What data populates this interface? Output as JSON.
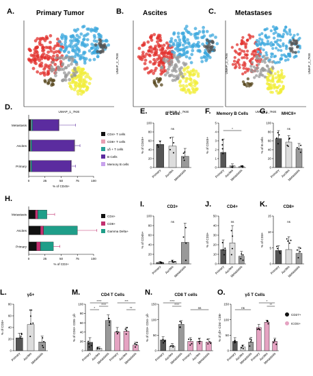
{
  "umap": {
    "panels": [
      {
        "letter": "A.",
        "title": "Primary Tumor"
      },
      {
        "letter": "B.",
        "title": "Ascites"
      },
      {
        "letter": "C.",
        "title": "Metastases"
      }
    ],
    "xlabel": "UMAP_1_7KIE",
    "ylabel": "UMAP_2_7KIE"
  },
  "colors": {
    "black": "#111111",
    "pink": "#e8a0b4",
    "teal": "#2aa198",
    "purple": "#5b2c9f",
    "lavender": "#c8a2ec",
    "darkpurple": "#3d1b6e",
    "magenta": "#c2306f",
    "greenblue": "#1f9e89",
    "lightgray": "#cccccc",
    "darkgray": "#444444",
    "icos": "#e5a3c2",
    "red": "#e2312d",
    "cyan": "#3da8dd",
    "yellow": "#f1ee3c",
    "umapgray": "#9a9a9a"
  },
  "chart_data": [
    {
      "id": "D",
      "type": "bar",
      "letter": "D.",
      "orientation": "horizontal-stacked",
      "categories": [
        "Metastasis",
        "Ascites",
        "Primary"
      ],
      "series": [
        {
          "name": "CD4+ T cells",
          "values": [
            3,
            2,
            2
          ]
        },
        {
          "name": "CD8+ T cells",
          "values": [
            1,
            1,
            1
          ]
        },
        {
          "name": "γδ + T cells",
          "values": [
            2,
            2,
            2
          ]
        },
        {
          "name": "B Cells",
          "values": [
            40,
            65,
            60
          ]
        },
        {
          "name": "Memory B cells",
          "values": [
            1,
            1,
            1
          ]
        }
      ],
      "errors": [
        25,
        8,
        6
      ],
      "xlabel": "% of CD45+",
      "xticks": [
        "0",
        "25",
        "50",
        "75",
        "100"
      ],
      "xlim": [
        0,
        100
      ]
    },
    {
      "id": "E",
      "type": "bar",
      "letter": "E.",
      "title": "B Cells",
      "ylabel": "% of CD45+",
      "categories": [
        "Primary",
        "Ascites",
        "Metastasis"
      ],
      "values": [
        52,
        48,
        25
      ],
      "errors": [
        8,
        20,
        18
      ],
      "yticks": [
        "0",
        "20",
        "40",
        "60",
        "80",
        "100"
      ],
      "ylim": [
        0,
        100
      ],
      "sig": [
        {
          "from": 0,
          "to": 2,
          "text": "ns"
        }
      ]
    },
    {
      "id": "F",
      "type": "bar",
      "letter": "F.",
      "title": "Memory B Cells",
      "ylabel": "% of CD45+",
      "categories": [
        "Primary",
        "Ascites",
        "Metastasis"
      ],
      "values": [
        1.7,
        0.2,
        0.1
      ],
      "errors": [
        1.5,
        0.2,
        0.1
      ],
      "yticks": [
        "0",
        "1",
        "2",
        "3",
        "4",
        "5"
      ],
      "ylim": [
        0,
        5
      ],
      "sig": [
        {
          "from": 0,
          "to": 2,
          "text": "*"
        }
      ]
    },
    {
      "id": "G",
      "type": "bar",
      "letter": "G.",
      "title": "MHCII+",
      "ylabel": "% of B cells",
      "categories": [
        "Primary",
        "Ascites",
        "Metastasis"
      ],
      "values": [
        65,
        57,
        42
      ],
      "errors": [
        18,
        15,
        12
      ],
      "yticks": [
        "0",
        "20",
        "40",
        "60",
        "80",
        "100"
      ],
      "ylim": [
        0,
        100
      ],
      "sig": [
        {
          "from": 0,
          "to": 2,
          "text": "ns"
        }
      ]
    },
    {
      "id": "H",
      "type": "bar",
      "letter": "H.",
      "orientation": "horizontal-stacked",
      "categories": [
        "Metastasis",
        "Ascites",
        "Primary"
      ],
      "series": [
        {
          "name": "CD4+",
          "values": [
            10,
            18,
            12
          ]
        },
        {
          "name": "CD8+",
          "values": [
            4,
            5,
            6
          ]
        },
        {
          "name": "Gamma Delta+",
          "values": [
            14,
            52,
            20
          ]
        }
      ],
      "errors": [
        12,
        30,
        10
      ],
      "xlabel": "% of CD3+",
      "xticks": [
        "0",
        "25",
        "50",
        "75",
        "100"
      ],
      "xlim": [
        0,
        100
      ]
    },
    {
      "id": "I",
      "type": "bar",
      "letter": "I.",
      "title": "CD3+",
      "ylabel": "% of CD45+",
      "categories": [
        "Primary",
        "Ascites",
        "Metastasis"
      ],
      "values": [
        3,
        5,
        45
      ],
      "errors": [
        2,
        3,
        40
      ],
      "yticks": [
        "0",
        "20",
        "40",
        "60",
        "80",
        "100"
      ],
      "ylim": [
        0,
        100
      ],
      "sig": [
        {
          "from": 0,
          "to": 2,
          "text": "ns"
        }
      ]
    },
    {
      "id": "J",
      "type": "bar",
      "letter": "J.",
      "title": "CD4+",
      "ylabel": "% of CD3+",
      "categories": [
        "Primary",
        "Ascites",
        "Metastasis"
      ],
      "values": [
        15,
        22,
        8
      ],
      "errors": [
        10,
        18,
        5
      ],
      "yticks": [
        "0",
        "10",
        "20",
        "30",
        "40",
        "50"
      ],
      "ylim": [
        0,
        50
      ],
      "sig": [
        {
          "from": 0,
          "to": 2,
          "text": "ns"
        }
      ]
    },
    {
      "id": "K",
      "type": "bar",
      "letter": "K.",
      "title": "CD8+",
      "ylabel": "% of CD3+",
      "categories": [
        "Primary",
        "Ascites",
        "Metastasis"
      ],
      "values": [
        4.2,
        4.5,
        3.3
      ],
      "errors": [
        1.5,
        4,
        2
      ],
      "yticks": [
        "0",
        "5",
        "10",
        "15"
      ],
      "ylim": [
        0,
        15
      ],
      "sig": [
        {
          "from": 0,
          "to": 2,
          "text": "ns"
        }
      ]
    },
    {
      "id": "L",
      "type": "bar",
      "letter": "L.",
      "title": "γδ+",
      "ylabel": "% of CD3+",
      "categories": [
        "Primary",
        "Ascites",
        "Metastasis"
      ],
      "values": [
        22,
        45,
        15
      ],
      "errors": [
        8,
        25,
        10
      ],
      "yticks": [
        "0",
        "20",
        "40",
        "60",
        "80"
      ],
      "ylim": [
        0,
        80
      ],
      "sig": [
        {
          "from": 0,
          "to": 2,
          "text": "ns"
        }
      ]
    },
    {
      "id": "M",
      "type": "bar",
      "letter": "M.",
      "title": "CD4 T Cells",
      "ylabel": "% of CD4+ CD8- γδ-",
      "categories": [
        "Primary",
        "Ascites",
        "Metastasis",
        "Primary",
        "Ascites",
        "Metastasis"
      ],
      "values": [
        18,
        5,
        65,
        40,
        42,
        12
      ],
      "errors": [
        10,
        3,
        12,
        10,
        8,
        6
      ],
      "yticks": [
        "0",
        "20",
        "40",
        "60",
        "80",
        "100"
      ],
      "ylim": [
        0,
        100
      ],
      "sig": [
        {
          "from": 0,
          "to": 2,
          "text": "****",
          "level": 3
        },
        {
          "from": 1,
          "to": 2,
          "text": "****",
          "level": 2
        },
        {
          "from": 0,
          "to": 1,
          "text": "*",
          "level": 1
        },
        {
          "from": 3,
          "to": 5,
          "text": "***",
          "level": 3
        },
        {
          "from": 4,
          "to": 5,
          "text": "**",
          "level": 1
        }
      ]
    },
    {
      "id": "N",
      "type": "bar",
      "letter": "N.",
      "title": "CD8 T cells",
      "ylabel": "% of CD3+ CD4- γδ-",
      "categories": [
        "Primary",
        "Ascites",
        "Metastasis",
        "Primary",
        "Ascites",
        "Metastasis"
      ],
      "values": [
        35,
        15,
        85,
        30,
        30,
        28
      ],
      "errors": [
        10,
        8,
        12,
        12,
        10,
        10
      ],
      "yticks": [
        "0",
        "50",
        "100",
        "150"
      ],
      "ylim": [
        0,
        150
      ],
      "sig": [
        {
          "from": 0,
          "to": 2,
          "text": "****",
          "level": 3
        },
        {
          "from": 1,
          "to": 2,
          "text": "****",
          "level": 2
        },
        {
          "from": 3,
          "to": 5,
          "text": "ns",
          "level": 1
        }
      ]
    },
    {
      "id": "O",
      "type": "bar",
      "letter": "O.",
      "title": "γδ T Cells",
      "ylabel": "% of γδ+ CD4- CD8-",
      "categories": [
        "Primary",
        "Ascites",
        "Metastasis",
        "Primary",
        "Ascites",
        "Metastasis"
      ],
      "values": [
        30,
        12,
        28,
        75,
        92,
        30
      ],
      "errors": [
        12,
        6,
        15,
        10,
        6,
        10
      ],
      "yticks": [
        "0",
        "50",
        "100",
        "150"
      ],
      "ylim": [
        0,
        150
      ],
      "sig": [
        {
          "from": 0,
          "to": 2,
          "text": "ns",
          "level": 1
        },
        {
          "from": 3,
          "to": 5,
          "text": "*",
          "level": 3
        },
        {
          "from": 4,
          "to": 5,
          "text": "**",
          "level": 2
        }
      ],
      "legend": [
        {
          "name": "CD27+"
        },
        {
          "name": "ICOS+"
        }
      ]
    }
  ]
}
